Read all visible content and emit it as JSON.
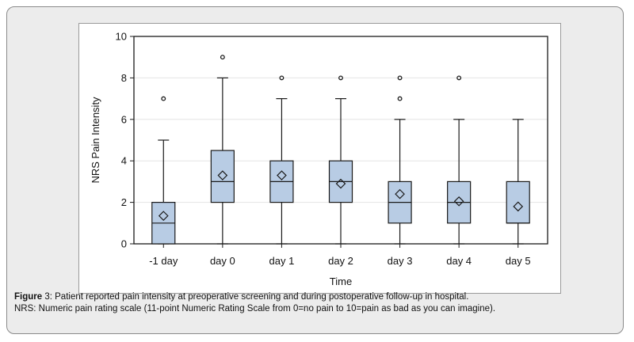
{
  "chart_data": {
    "type": "boxplot",
    "ylabel": "NRS Pain Intensity",
    "xlabel": "Time",
    "ylim": [
      0,
      10
    ],
    "yticks": [
      0,
      2,
      4,
      6,
      8,
      10
    ],
    "grid": "horizontal",
    "categories": [
      "-1 day",
      "day 0",
      "day 1",
      "day 2",
      "day 3",
      "day 4",
      "day 5"
    ],
    "boxes": [
      {
        "min": 0,
        "q1": 0,
        "median": 1,
        "q3": 2,
        "max": 5,
        "mean": 1.35,
        "outliers": [
          7
        ]
      },
      {
        "min": 0,
        "q1": 2,
        "median": 3,
        "q3": 4.5,
        "max": 8,
        "mean": 3.3,
        "outliers": [
          9
        ]
      },
      {
        "min": 0,
        "q1": 2,
        "median": 3,
        "q3": 4,
        "max": 7,
        "mean": 3.3,
        "outliers": [
          8
        ]
      },
      {
        "min": 0,
        "q1": 2,
        "median": 3,
        "q3": 4,
        "max": 7,
        "mean": 2.9,
        "outliers": [
          8
        ]
      },
      {
        "min": 0,
        "q1": 1,
        "median": 2,
        "q3": 3,
        "max": 6,
        "mean": 2.4,
        "outliers": [
          7,
          8
        ]
      },
      {
        "min": 0,
        "q1": 1,
        "median": 2,
        "q3": 3,
        "max": 6,
        "mean": 2.05,
        "outliers": [
          8
        ]
      },
      {
        "min": 0,
        "q1": 1,
        "median": 1,
        "q3": 3,
        "max": 6,
        "mean": 1.8,
        "outliers": []
      }
    ],
    "colors": {
      "box_fill": "#b8cce4",
      "stroke": "#1a1a1a",
      "grid": "#e4e4e4"
    }
  },
  "caption": {
    "label": "Figure",
    "line1": " 3: Patient reported pain intensity at preoperative screening and during postoperative follow-up in hospital.",
    "line2": "NRS: Numeric pain rating scale (11-point Numeric Rating Scale from 0=no pain to 10=pain as bad as you can imagine)."
  }
}
